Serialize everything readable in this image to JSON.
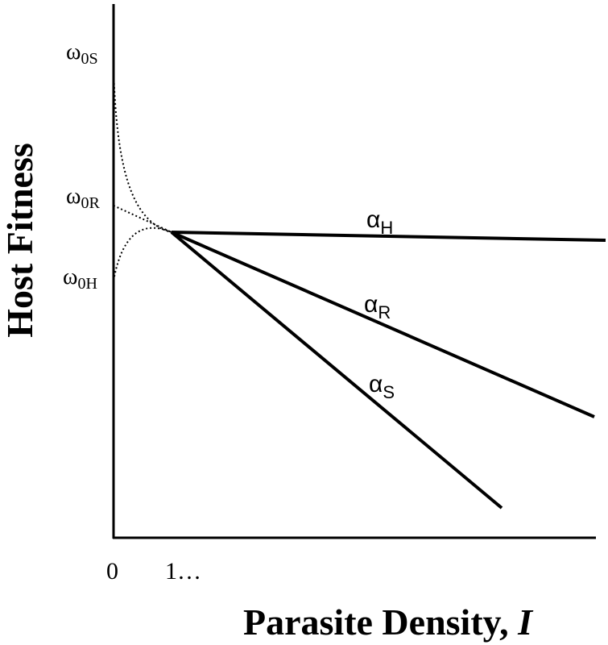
{
  "chart_data": {
    "type": "line",
    "xlabel": "Parasite Density, ",
    "xlabel_var": "I",
    "ylabel": "Host Fitness",
    "x_ticks": [
      "0",
      "1…"
    ],
    "grid": false,
    "legend": "none",
    "y_intercepts": [
      {
        "base": "ω",
        "sub": "0S"
      },
      {
        "base": "ω",
        "sub": "0R"
      },
      {
        "base": "ω",
        "sub": "0H"
      }
    ],
    "series": [
      {
        "name_base": "α",
        "name_sub": "H",
        "style": "solid"
      },
      {
        "name_base": "α",
        "name_sub": "R",
        "style": "solid"
      },
      {
        "name_base": "α",
        "name_sub": "S",
        "style": "solid"
      }
    ]
  }
}
